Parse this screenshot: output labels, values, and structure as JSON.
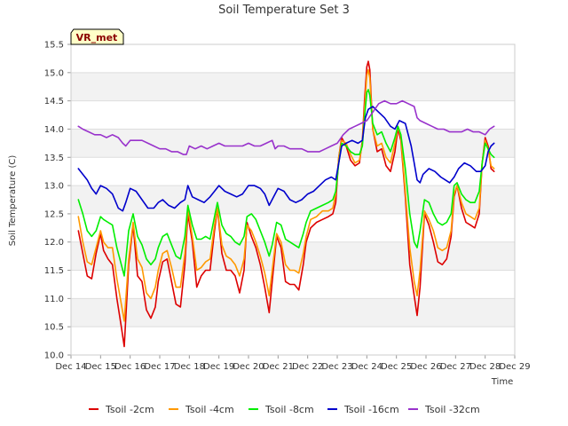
{
  "chart_data": {
    "type": "line",
    "title": "Soil Temperature Set 3",
    "xlabel": "Time",
    "ylabel": "Soil Temperature (C)",
    "badge": "VR_met",
    "xlim": [
      14,
      29
    ],
    "ylim": [
      10.0,
      15.5
    ],
    "x_ticks": [
      14,
      15,
      16,
      17,
      18,
      19,
      20,
      21,
      22,
      23,
      24,
      25,
      26,
      27,
      28,
      29
    ],
    "x_tick_labels": [
      "Dec 14",
      "Dec 15",
      "Dec 16",
      "Dec 17",
      "Dec 18",
      "Dec 19",
      "Dec 20",
      "Dec 21",
      "Dec 22",
      "Dec 23",
      "Dec 24",
      "Dec 25",
      "Dec 26",
      "Dec 27",
      "Dec 28",
      "Dec 29"
    ],
    "y_ticks": [
      10.0,
      10.5,
      11.0,
      11.5,
      12.0,
      12.5,
      13.0,
      13.5,
      14.0,
      14.5,
      15.0,
      15.5
    ],
    "y_tick_labels": [
      "10.0",
      "10.5",
      "11.0",
      "11.5",
      "12.0",
      "12.5",
      "13.0",
      "13.5",
      "14.0",
      "14.5",
      "15.0",
      "15.5"
    ],
    "grid": "horizontal bands",
    "legend_position": "bottom",
    "series": [
      {
        "name": "Tsoil -2cm",
        "color": "#dd0000",
        "x": [
          14.25,
          14.4,
          14.55,
          14.7,
          14.85,
          15.0,
          15.1,
          15.25,
          15.4,
          15.55,
          15.7,
          15.8,
          15.95,
          16.1,
          16.25,
          16.4,
          16.55,
          16.7,
          16.85,
          16.95,
          17.1,
          17.25,
          17.4,
          17.55,
          17.7,
          17.85,
          17.95,
          18.1,
          18.25,
          18.4,
          18.55,
          18.7,
          18.85,
          18.95,
          19.1,
          19.25,
          19.4,
          19.55,
          19.7,
          19.85,
          19.95,
          20.1,
          20.25,
          20.4,
          20.55,
          20.7,
          20.8,
          20.95,
          21.1,
          21.25,
          21.4,
          21.55,
          21.7,
          21.85,
          21.95,
          22.1,
          22.3,
          22.5,
          22.7,
          22.85,
          22.95,
          23.05,
          23.15,
          23.3,
          23.45,
          23.6,
          23.75,
          23.85,
          23.92,
          24.0,
          24.05,
          24.1,
          24.2,
          24.35,
          24.5,
          24.65,
          24.8,
          24.95,
          25.05,
          25.15,
          25.3,
          25.45,
          25.6,
          25.7,
          25.8,
          25.95,
          26.1,
          26.25,
          26.4,
          26.55,
          26.7,
          26.85,
          26.95,
          27.05,
          27.2,
          27.35,
          27.5,
          27.65,
          27.8,
          27.9,
          28.0,
          28.1,
          28.2,
          28.3
        ],
        "y": [
          12.2,
          11.8,
          11.4,
          11.35,
          11.8,
          12.15,
          11.85,
          11.7,
          11.6,
          11.0,
          10.5,
          10.15,
          11.6,
          12.3,
          11.4,
          11.3,
          10.8,
          10.65,
          10.85,
          11.3,
          11.65,
          11.7,
          11.3,
          10.9,
          10.85,
          11.6,
          12.5,
          12.0,
          11.2,
          11.4,
          11.5,
          11.5,
          12.2,
          12.6,
          11.8,
          11.5,
          11.5,
          11.4,
          11.1,
          11.5,
          12.35,
          12.1,
          11.9,
          11.6,
          11.2,
          10.75,
          11.3,
          12.1,
          11.9,
          11.3,
          11.25,
          11.25,
          11.15,
          11.6,
          12.0,
          12.25,
          12.35,
          12.4,
          12.45,
          12.5,
          12.7,
          13.5,
          13.85,
          13.7,
          13.45,
          13.35,
          13.4,
          13.8,
          14.5,
          15.1,
          15.2,
          15.05,
          14.0,
          13.6,
          13.65,
          13.35,
          13.25,
          13.6,
          14.0,
          13.8,
          12.8,
          11.6,
          11.05,
          10.7,
          11.2,
          12.5,
          12.3,
          12.0,
          11.65,
          11.6,
          11.7,
          12.1,
          12.8,
          13.0,
          12.6,
          12.35,
          12.3,
          12.25,
          12.5,
          13.4,
          13.85,
          13.7,
          13.3,
          13.25
        ]
      },
      {
        "name": "Tsoil -4cm",
        "color": "#ff9900",
        "x": [
          14.25,
          14.4,
          14.55,
          14.7,
          14.85,
          15.0,
          15.1,
          15.25,
          15.4,
          15.55,
          15.7,
          15.8,
          15.95,
          16.1,
          16.25,
          16.4,
          16.55,
          16.7,
          16.85,
          16.95,
          17.1,
          17.25,
          17.4,
          17.55,
          17.7,
          17.85,
          17.95,
          18.1,
          18.25,
          18.4,
          18.55,
          18.7,
          18.85,
          18.95,
          19.1,
          19.25,
          19.4,
          19.55,
          19.7,
          19.85,
          19.95,
          20.1,
          20.25,
          20.4,
          20.55,
          20.7,
          20.8,
          20.95,
          21.1,
          21.25,
          21.4,
          21.55,
          21.7,
          21.85,
          21.95,
          22.1,
          22.3,
          22.5,
          22.7,
          22.85,
          22.95,
          23.05,
          23.15,
          23.3,
          23.45,
          23.6,
          23.75,
          23.85,
          23.92,
          24.0,
          24.05,
          24.1,
          24.2,
          24.35,
          24.5,
          24.65,
          24.8,
          24.95,
          25.05,
          25.15,
          25.3,
          25.45,
          25.6,
          25.7,
          25.8,
          25.95,
          26.1,
          26.25,
          26.4,
          26.55,
          26.7,
          26.85,
          26.95,
          27.05,
          27.2,
          27.35,
          27.5,
          27.65,
          27.8,
          27.9,
          28.0,
          28.1,
          28.2,
          28.3
        ],
        "y": [
          12.45,
          12.0,
          11.65,
          11.6,
          11.9,
          12.2,
          12.0,
          11.9,
          11.9,
          11.35,
          10.9,
          10.6,
          11.7,
          12.35,
          11.7,
          11.55,
          11.1,
          11.0,
          11.2,
          11.5,
          11.8,
          11.85,
          11.55,
          11.2,
          11.2,
          11.8,
          12.6,
          12.1,
          11.5,
          11.55,
          11.65,
          11.7,
          12.3,
          12.6,
          11.95,
          11.75,
          11.7,
          11.6,
          11.4,
          11.7,
          12.3,
          12.2,
          12.0,
          11.75,
          11.45,
          11.05,
          11.5,
          12.15,
          12.0,
          11.6,
          11.5,
          11.5,
          11.45,
          11.8,
          12.1,
          12.4,
          12.45,
          12.55,
          12.55,
          12.6,
          12.85,
          13.5,
          13.8,
          13.75,
          13.55,
          13.4,
          13.45,
          13.75,
          14.35,
          14.95,
          15.05,
          14.9,
          14.0,
          13.7,
          13.75,
          13.5,
          13.4,
          13.75,
          14.05,
          13.85,
          12.9,
          11.9,
          11.3,
          11.05,
          11.5,
          12.55,
          12.4,
          12.2,
          11.9,
          11.85,
          11.9,
          12.2,
          12.85,
          13.0,
          12.7,
          12.5,
          12.45,
          12.4,
          12.6,
          13.4,
          13.8,
          13.65,
          13.35,
          13.3
        ]
      },
      {
        "name": "Tsoil -8cm",
        "color": "#00ee00",
        "x": [
          14.25,
          14.4,
          14.55,
          14.7,
          14.85,
          15.0,
          15.1,
          15.25,
          15.4,
          15.55,
          15.7,
          15.8,
          15.95,
          16.1,
          16.25,
          16.4,
          16.55,
          16.7,
          16.85,
          16.95,
          17.1,
          17.25,
          17.4,
          17.55,
          17.7,
          17.85,
          17.95,
          18.1,
          18.25,
          18.4,
          18.55,
          18.7,
          18.85,
          18.95,
          19.1,
          19.25,
          19.4,
          19.55,
          19.7,
          19.85,
          19.95,
          20.1,
          20.25,
          20.4,
          20.55,
          20.7,
          20.8,
          20.95,
          21.1,
          21.25,
          21.4,
          21.55,
          21.7,
          21.85,
          21.95,
          22.1,
          22.3,
          22.5,
          22.7,
          22.85,
          22.95,
          23.05,
          23.15,
          23.3,
          23.45,
          23.6,
          23.75,
          23.85,
          23.92,
          24.0,
          24.05,
          24.1,
          24.2,
          24.35,
          24.5,
          24.65,
          24.8,
          24.95,
          25.05,
          25.15,
          25.3,
          25.45,
          25.6,
          25.7,
          25.8,
          25.95,
          26.1,
          26.25,
          26.4,
          26.55,
          26.7,
          26.85,
          26.95,
          27.05,
          27.2,
          27.35,
          27.5,
          27.65,
          27.8,
          27.9,
          28.0,
          28.1,
          28.2,
          28.3
        ],
        "y": [
          12.75,
          12.5,
          12.2,
          12.1,
          12.2,
          12.45,
          12.4,
          12.35,
          12.3,
          11.9,
          11.6,
          11.4,
          12.2,
          12.5,
          12.1,
          11.95,
          11.7,
          11.6,
          11.7,
          11.9,
          12.1,
          12.15,
          11.95,
          11.75,
          11.7,
          12.1,
          12.65,
          12.3,
          12.05,
          12.05,
          12.1,
          12.05,
          12.45,
          12.7,
          12.3,
          12.15,
          12.1,
          12.0,
          11.95,
          12.1,
          12.45,
          12.5,
          12.4,
          12.2,
          12.0,
          11.75,
          11.95,
          12.35,
          12.3,
          12.05,
          12.0,
          11.95,
          11.9,
          12.15,
          12.35,
          12.55,
          12.6,
          12.65,
          12.7,
          12.75,
          12.9,
          13.4,
          13.75,
          13.7,
          13.6,
          13.55,
          13.55,
          13.7,
          14.2,
          14.65,
          14.7,
          14.6,
          14.1,
          13.9,
          13.95,
          13.75,
          13.6,
          13.85,
          14.05,
          13.9,
          13.3,
          12.5,
          12.0,
          11.9,
          12.2,
          12.75,
          12.7,
          12.5,
          12.35,
          12.3,
          12.35,
          12.5,
          13.0,
          13.05,
          12.85,
          12.75,
          12.7,
          12.7,
          12.9,
          13.4,
          13.75,
          13.65,
          13.55,
          13.5
        ]
      },
      {
        "name": "Tsoil -16cm",
        "color": "#0000cc",
        "x": [
          14.25,
          14.4,
          14.55,
          14.7,
          14.85,
          15.0,
          15.2,
          15.4,
          15.6,
          15.75,
          15.85,
          16.0,
          16.2,
          16.4,
          16.6,
          16.8,
          16.95,
          17.1,
          17.3,
          17.5,
          17.7,
          17.85,
          17.95,
          18.1,
          18.3,
          18.5,
          18.7,
          18.85,
          19.0,
          19.2,
          19.4,
          19.6,
          19.8,
          20.0,
          20.2,
          20.4,
          20.55,
          20.7,
          20.85,
          21.0,
          21.2,
          21.4,
          21.6,
          21.8,
          22.0,
          22.2,
          22.4,
          22.6,
          22.8,
          22.95,
          23.05,
          23.15,
          23.3,
          23.5,
          23.7,
          23.85,
          23.95,
          24.05,
          24.2,
          24.4,
          24.6,
          24.8,
          24.95,
          25.1,
          25.3,
          25.5,
          25.6,
          25.7,
          25.8,
          25.9,
          26.1,
          26.3,
          26.5,
          26.65,
          26.8,
          26.95,
          27.1,
          27.3,
          27.5,
          27.7,
          27.85,
          28.0,
          28.1,
          28.2,
          28.3
        ],
        "y": [
          13.3,
          13.2,
          13.1,
          12.95,
          12.85,
          13.0,
          12.95,
          12.85,
          12.6,
          12.55,
          12.7,
          12.95,
          12.9,
          12.75,
          12.6,
          12.6,
          12.7,
          12.75,
          12.65,
          12.6,
          12.7,
          12.75,
          13.0,
          12.8,
          12.75,
          12.7,
          12.8,
          12.9,
          13.0,
          12.9,
          12.85,
          12.8,
          12.85,
          13.0,
          13.0,
          12.95,
          12.85,
          12.65,
          12.8,
          12.95,
          12.9,
          12.75,
          12.7,
          12.75,
          12.85,
          12.9,
          13.0,
          13.1,
          13.15,
          13.1,
          13.4,
          13.7,
          13.75,
          13.8,
          13.75,
          13.8,
          14.2,
          14.35,
          14.4,
          14.3,
          14.2,
          14.05,
          14.0,
          14.15,
          14.1,
          13.7,
          13.4,
          13.1,
          13.05,
          13.2,
          13.3,
          13.25,
          13.15,
          13.1,
          13.05,
          13.15,
          13.3,
          13.4,
          13.35,
          13.25,
          13.25,
          13.35,
          13.6,
          13.7,
          13.75
        ]
      },
      {
        "name": "Tsoil -32cm",
        "color": "#9933cc",
        "x": [
          14.25,
          14.4,
          14.6,
          14.8,
          15.0,
          15.2,
          15.4,
          15.6,
          15.75,
          15.85,
          16.0,
          16.2,
          16.4,
          16.6,
          16.8,
          17.0,
          17.2,
          17.4,
          17.6,
          17.8,
          17.9,
          18.0,
          18.2,
          18.4,
          18.6,
          18.8,
          19.0,
          19.2,
          19.4,
          19.6,
          19.8,
          20.0,
          20.2,
          20.4,
          20.6,
          20.8,
          20.9,
          21.0,
          21.2,
          21.4,
          21.6,
          21.8,
          22.0,
          22.2,
          22.4,
          22.6,
          22.8,
          23.0,
          23.2,
          23.4,
          23.6,
          23.8,
          24.0,
          24.2,
          24.4,
          24.6,
          24.8,
          25.0,
          25.2,
          25.4,
          25.6,
          25.7,
          25.8,
          26.0,
          26.2,
          26.4,
          26.6,
          26.8,
          27.0,
          27.2,
          27.4,
          27.6,
          27.8,
          28.0,
          28.15,
          28.3
        ],
        "y": [
          14.05,
          14.0,
          13.95,
          13.9,
          13.9,
          13.85,
          13.9,
          13.85,
          13.75,
          13.7,
          13.8,
          13.8,
          13.8,
          13.75,
          13.7,
          13.65,
          13.65,
          13.6,
          13.6,
          13.55,
          13.55,
          13.7,
          13.65,
          13.7,
          13.65,
          13.7,
          13.75,
          13.7,
          13.7,
          13.7,
          13.7,
          13.75,
          13.7,
          13.7,
          13.75,
          13.8,
          13.65,
          13.7,
          13.7,
          13.65,
          13.65,
          13.65,
          13.6,
          13.6,
          13.6,
          13.65,
          13.7,
          13.75,
          13.9,
          14.0,
          14.05,
          14.1,
          14.15,
          14.3,
          14.45,
          14.5,
          14.45,
          14.45,
          14.5,
          14.45,
          14.4,
          14.2,
          14.15,
          14.1,
          14.05,
          14.0,
          14.0,
          13.95,
          13.95,
          13.95,
          14.0,
          13.95,
          13.95,
          13.9,
          14.0,
          14.05
        ]
      }
    ]
  }
}
